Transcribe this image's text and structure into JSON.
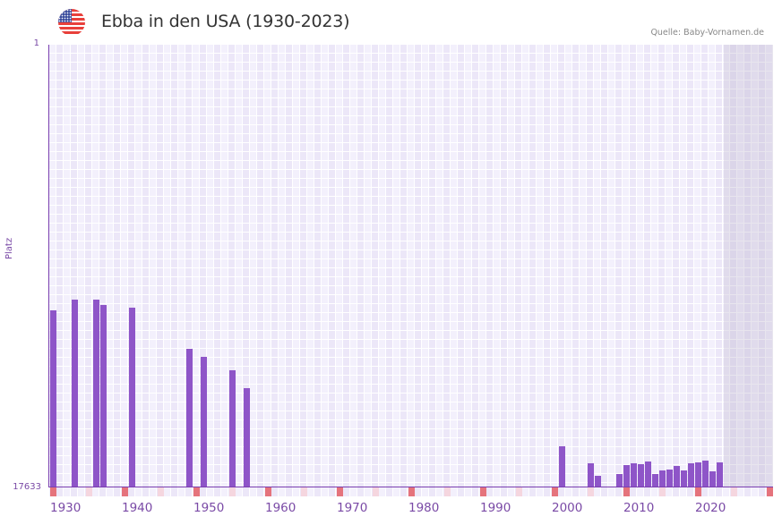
{
  "header": {
    "title": "Ebba in den USA (1930-2023)",
    "flag_icon": "us-flag-icon",
    "source": "Quelle: Baby-Vornamen.de"
  },
  "axes": {
    "y_top_label": "1",
    "y_bottom_label": "17633",
    "y_title": "Platz",
    "x_labels": [
      "1930",
      "1940",
      "1950",
      "1960",
      "1970",
      "1980",
      "1990",
      "2000",
      "2010",
      "2020"
    ]
  },
  "colors": {
    "bar": "#8e55c8",
    "axis": "#7a3fb0",
    "decade_marker": "#e5737c",
    "half_decade_marker": "#f5d6df",
    "plot_bg": "#f2effb"
  },
  "chart_data": {
    "type": "bar",
    "title": "Ebba in den USA (1930-2023)",
    "xlabel": "",
    "ylabel": "Platz",
    "ylim": [
      17633,
      1
    ],
    "y_inverted": true,
    "x_range": [
      1930,
      2030
    ],
    "grid": true,
    "legend": null,
    "annotation": "Quelle: Baby-Vornamen.de",
    "categories": [
      1930,
      1933,
      1936,
      1937,
      1941,
      1949,
      1951,
      1955,
      1957,
      2001,
      2005,
      2006,
      2009,
      2010,
      2011,
      2012,
      2013,
      2014,
      2015,
      2016,
      2017,
      2018,
      2019,
      2020,
      2021,
      2022,
      2023
    ],
    "values": [
      10580,
      10150,
      10150,
      10370,
      10470,
      12110,
      12430,
      12970,
      13680,
      16000,
      16670,
      17170,
      17100,
      16740,
      16670,
      16710,
      16600,
      17100,
      16960,
      16920,
      16780,
      16960,
      16670,
      16640,
      16570,
      16990,
      16640
    ]
  }
}
